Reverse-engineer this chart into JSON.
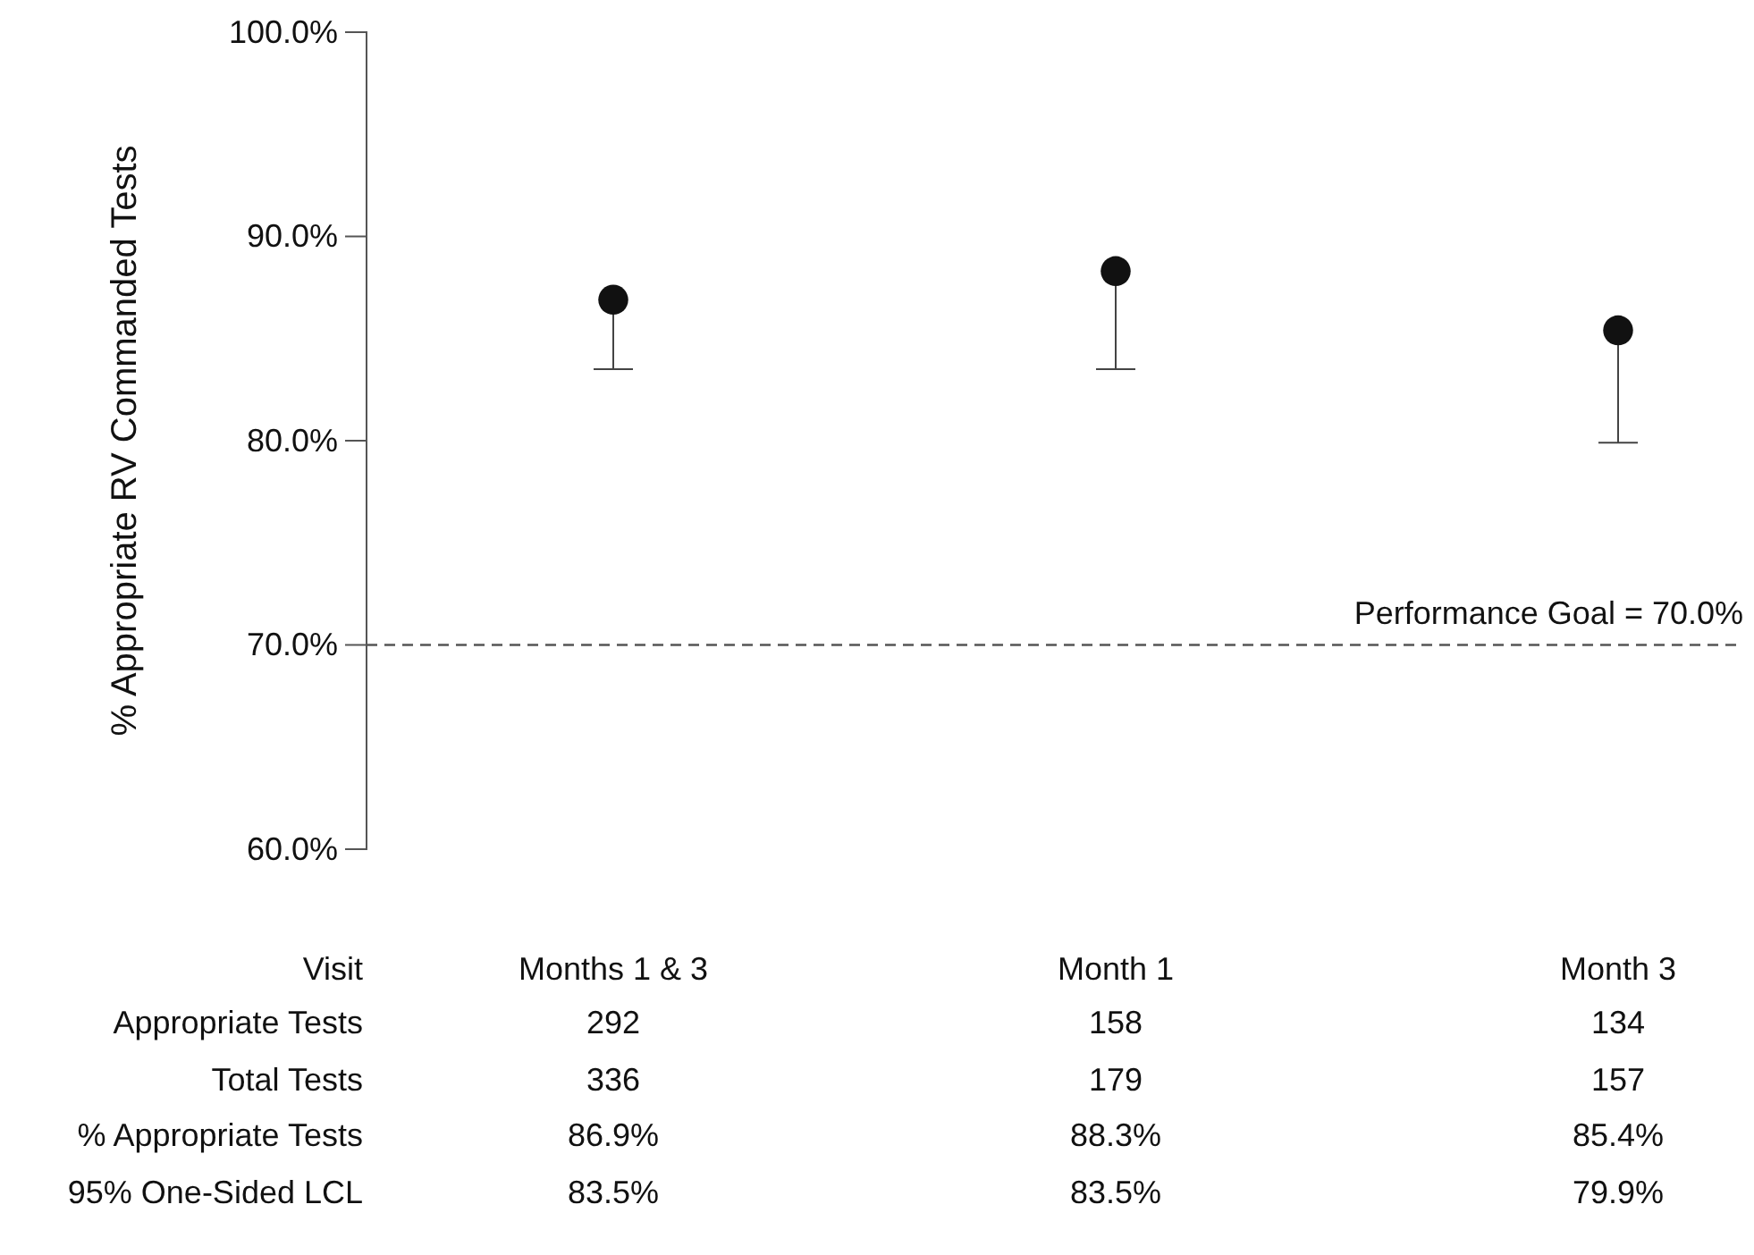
{
  "chart_data": {
    "type": "scatter",
    "ylabel": "% Appropriate RV Commanded Tests",
    "categories": [
      "Months 1 & 3",
      "Month 1",
      "Month 3"
    ],
    "values": [
      86.9,
      88.3,
      85.4
    ],
    "errors": [
      [
        83.5,
        86.9
      ],
      [
        83.5,
        88.3
      ],
      [
        79.9,
        85.4
      ]
    ],
    "value_labels": [
      "86.9%",
      "88.3%",
      "85.4%"
    ],
    "color": "#111111",
    "marker": "circle",
    "ylim": [
      60,
      100
    ],
    "yticks": [
      {
        "value": 60,
        "label": "60.0%"
      },
      {
        "value": 70,
        "label": "70.0%"
      },
      {
        "value": 80,
        "label": "80.0%"
      },
      {
        "value": 90,
        "label": "90.0%"
      },
      {
        "value": 100,
        "label": "100.0%"
      }
    ],
    "ref_lines": [
      {
        "axis": "y",
        "value": 70,
        "label": "Performance Goal = 70.0%",
        "line_style": "dashed",
        "color": "#555555"
      }
    ],
    "grid": false,
    "annotations": [
      "Visit",
      "Appropriate Tests",
      "292",
      "158",
      "134",
      "Total Tests",
      "336",
      "179",
      "157",
      "% Appropriate Tests",
      "95% One-Sided LCL",
      "83.5%",
      "83.5%",
      "79.9%"
    ]
  }
}
